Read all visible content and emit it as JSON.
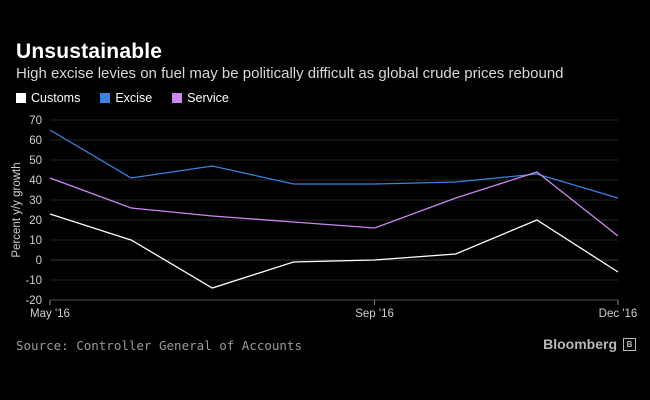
{
  "header": {
    "title": "Unsustainable",
    "subtitle": "High excise levies on fuel may be politically difficult as global crude prices rebound"
  },
  "legend": {
    "items": [
      {
        "label": "Customs",
        "color": "#ffffff"
      },
      {
        "label": "Excise",
        "color": "#3a83e0"
      },
      {
        "label": "Service",
        "color": "#cc88ee"
      }
    ]
  },
  "footer": {
    "source": "Source: Controller General of Accounts",
    "brand": "Bloomberg"
  },
  "chart_data": {
    "type": "line",
    "title": "Unsustainable",
    "subtitle": "High excise levies on fuel may be politically difficult as global crude prices rebound",
    "xlabel": "",
    "ylabel": "Percent y/y growth",
    "x": [
      "May '16",
      "Jun '16",
      "Jul '16",
      "Aug '16",
      "Sep '16",
      "Oct '16",
      "Nov '16",
      "Dec '16"
    ],
    "x_tick_labels": [
      "May '16",
      "Sep '16",
      "Dec '16"
    ],
    "x_tick_indices": [
      0,
      4,
      7
    ],
    "ylim": [
      -20,
      70
    ],
    "yticks": [
      70,
      60,
      50,
      40,
      30,
      20,
      10,
      0,
      -10,
      -20
    ],
    "grid": true,
    "series": [
      {
        "name": "Customs",
        "color": "#ffffff",
        "values": [
          23,
          10,
          -14,
          -1,
          0,
          3,
          20,
          -6
        ]
      },
      {
        "name": "Excise",
        "color": "#3a83e0",
        "values": [
          65,
          41,
          47,
          38,
          38,
          39,
          43,
          31
        ]
      },
      {
        "name": "Service",
        "color": "#cc88ee",
        "values": [
          41,
          26,
          22,
          19,
          16,
          31,
          44,
          12
        ]
      }
    ]
  }
}
